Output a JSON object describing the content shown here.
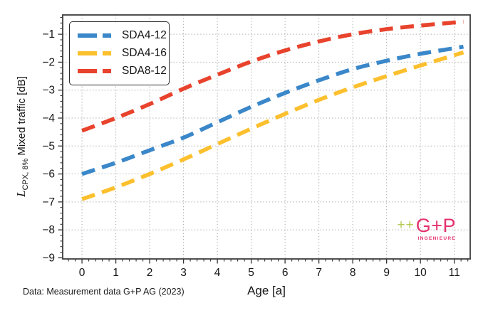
{
  "figure": {
    "footer": "Data: Measurement data G+P AG (2023)",
    "xlabel": "Age [a]",
    "ylabel_symbol": "L",
    "ylabel_subscript": "CPX, 8%",
    "ylabel_rest": " Mixed traffic [dB]"
  },
  "logo": {
    "plus": "++",
    "name": "G+P",
    "subtitle": "INGENIEURE",
    "pink": "#e5316e",
    "green": "#b4ca55"
  },
  "chart_data": {
    "type": "line",
    "title": "",
    "xlabel": "Age [a]",
    "ylabel": "L_CPX, 8% Mixed traffic [dB]",
    "x": [
      0,
      1,
      2,
      3,
      4,
      5,
      6,
      7,
      8,
      9,
      10,
      11
    ],
    "series": [
      {
        "name": "SDA4-12",
        "color": "#3a87c9",
        "values": [
          -6.0,
          -5.6,
          -5.15,
          -4.7,
          -4.15,
          -3.6,
          -3.1,
          -2.65,
          -2.25,
          -1.95,
          -1.7,
          -1.5
        ]
      },
      {
        "name": "SDA4-16",
        "color": "#fcc02e",
        "values": [
          -6.9,
          -6.48,
          -6.0,
          -5.48,
          -4.93,
          -4.38,
          -3.85,
          -3.35,
          -2.9,
          -2.5,
          -2.12,
          -1.75
        ]
      },
      {
        "name": "SDA8-12",
        "color": "#e8432d",
        "values": [
          -4.45,
          -4.0,
          -3.5,
          -2.95,
          -2.45,
          -1.98,
          -1.58,
          -1.26,
          -1.0,
          -0.82,
          -0.69,
          -0.58
        ]
      }
    ],
    "xlim": [
      -0.57,
      11.47
    ],
    "ylim": [
      -9.04,
      -0.31
    ],
    "xticks": [
      0,
      1,
      2,
      3,
      4,
      5,
      6,
      7,
      8,
      9,
      10,
      11
    ],
    "yticks": [
      -9,
      -8,
      -7,
      -6,
      -5,
      -4,
      -3,
      -2,
      -1
    ],
    "minor_tick_step": 0.2,
    "grid": "dotted on major ticks",
    "grid_color": "#adadad",
    "frame_color": "#3c3c3c",
    "line_style": "dashed",
    "line_width": 5.6,
    "legend_position": "upper left"
  }
}
